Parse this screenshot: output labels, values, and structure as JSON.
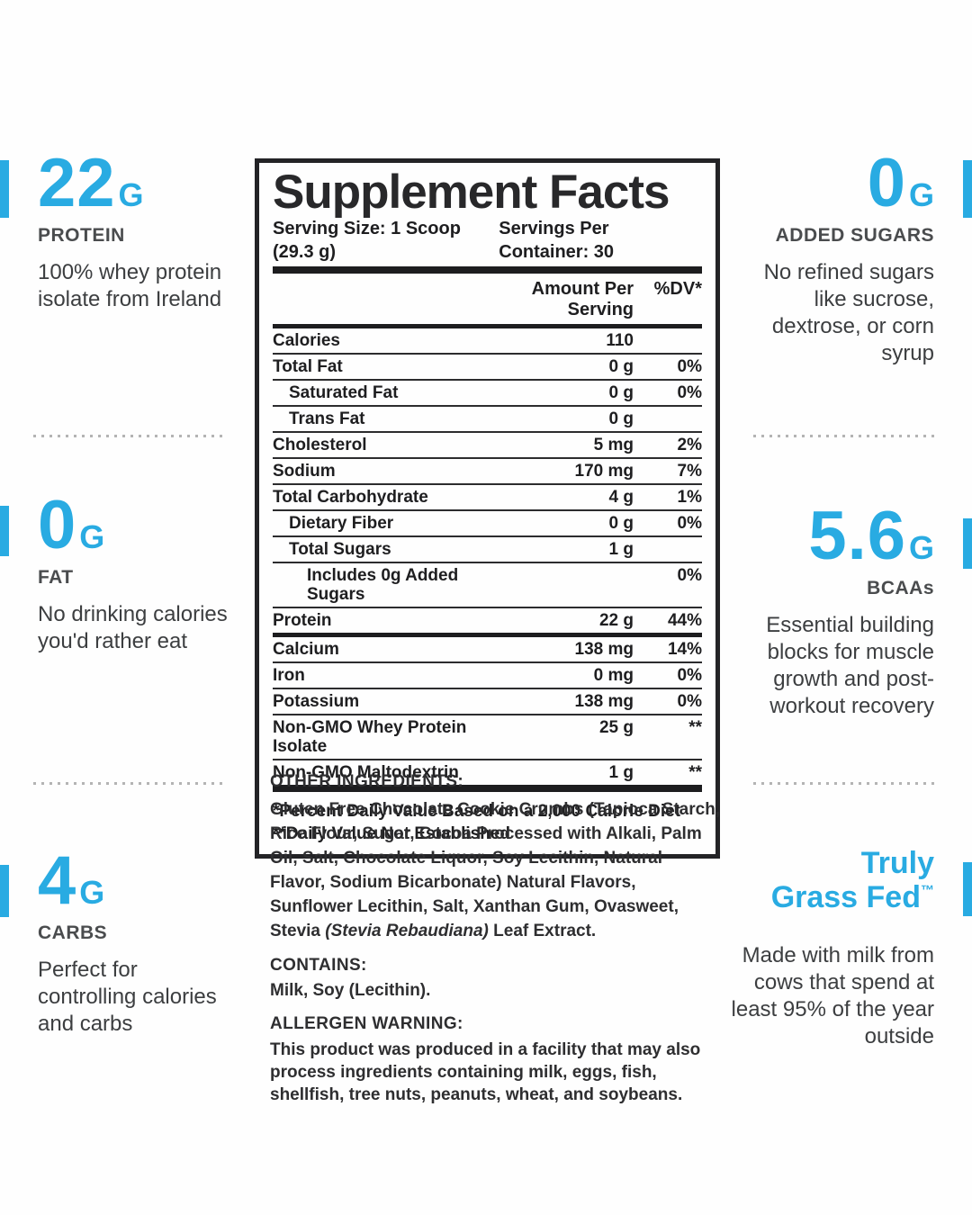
{
  "accent": {
    "blue": "#29abe2"
  },
  "left_column": {
    "stats": [
      {
        "value": "22",
        "unit": "G",
        "label": "PROTEIN",
        "description": "100% whey protein isolate from Ireland"
      },
      {
        "value": "0",
        "unit": "G",
        "label": "FAT",
        "description": "No drinking calories you'd rather eat"
      },
      {
        "value": "4",
        "unit": "G",
        "label": "CARBS",
        "description": "Perfect for controlling calories and carbs"
      }
    ]
  },
  "right_column": {
    "stats": [
      {
        "value": "0",
        "unit": "G",
        "label": "ADDED SUGARS",
        "description": "No refined sugars like sucrose, dextrose, or corn syrup"
      },
      {
        "value": "5.6",
        "unit": "G",
        "label": "BCAAs",
        "description": "Essential building blocks for muscle growth and post-workout recovery"
      }
    ],
    "grassfed": {
      "line1": "Truly",
      "line2": "Grass Fed",
      "trademark": "™",
      "description": "Made with milk from cows that spend at least 95% of the year outside"
    }
  },
  "panel": {
    "title": "Supplement Facts",
    "serving_size": "Serving Size: 1 Scoop (29.3 g)",
    "servings_per_container": "Servings Per Container: 30",
    "col_amount": "Amount Per Serving",
    "col_dv": "%DV*",
    "rows": [
      {
        "name": "Calories",
        "amount": "110",
        "dv": ""
      },
      {
        "name": "Total Fat",
        "amount": "0 g",
        "dv": "0%"
      },
      {
        "name": "Saturated Fat",
        "amount": "0 g",
        "dv": "0%"
      },
      {
        "name": "Trans Fat",
        "amount": "0 g",
        "dv": ""
      },
      {
        "name": "Cholesterol",
        "amount": "5 mg",
        "dv": "2%"
      },
      {
        "name": "Sodium",
        "amount": "170 mg",
        "dv": "7%"
      },
      {
        "name": "Total Carbohydrate",
        "amount": "4 g",
        "dv": "1%"
      },
      {
        "name": "Dietary Fiber",
        "amount": "0 g",
        "dv": "0%"
      },
      {
        "name": "Total Sugars",
        "amount": "1 g",
        "dv": ""
      },
      {
        "name": "Includes 0g Added Sugars",
        "amount": "",
        "dv": "0%"
      },
      {
        "name": "Protein",
        "amount": "22 g",
        "dv": "44%"
      },
      {
        "name": "Calcium",
        "amount": "138 mg",
        "dv": "14%"
      },
      {
        "name": "Iron",
        "amount": "0 mg",
        "dv": "0%"
      },
      {
        "name": "Potassium",
        "amount": "138 mg",
        "dv": "0%"
      },
      {
        "name": "Non-GMO Whey Protein Isolate",
        "amount": "25 g",
        "dv": "**"
      },
      {
        "name": "Non-GMO Maltodextrin",
        "amount": "1 g",
        "dv": "**"
      }
    ],
    "footnotes": [
      "*Percent Daily Value Based on a 2,000 Calorie Diet",
      "**Daily Value Not Established"
    ]
  },
  "other_ingredients": {
    "heading": "OTHER INGREDIENTS:",
    "text_before_italic": "Gluten Free Chocolate Cookie Crumbs (Tapioca Starch, Rice Flour, Sugar, Cocoa Processed with Alkali, Palm Oil, Salt, Chocolate Liquor, Soy Lecithin, Natural Flavor, Sodium Bicarbonate) Natural Flavors, Sunflower Lecithin, Salt, Xanthan Gum, Ovasweet, Stevia ",
    "italic": "(Stevia Rebaudiana)",
    "text_after_italic": " Leaf Extract."
  },
  "contains": {
    "heading": "CONTAINS:",
    "text": "Milk, Soy (Lecithin)."
  },
  "allergen": {
    "heading": "ALLERGEN WARNING:",
    "text": "This product was produced in a facility that may also process ingredients containing milk, eggs, fish, shellfish, tree nuts, peanuts, wheat, and soybeans."
  }
}
